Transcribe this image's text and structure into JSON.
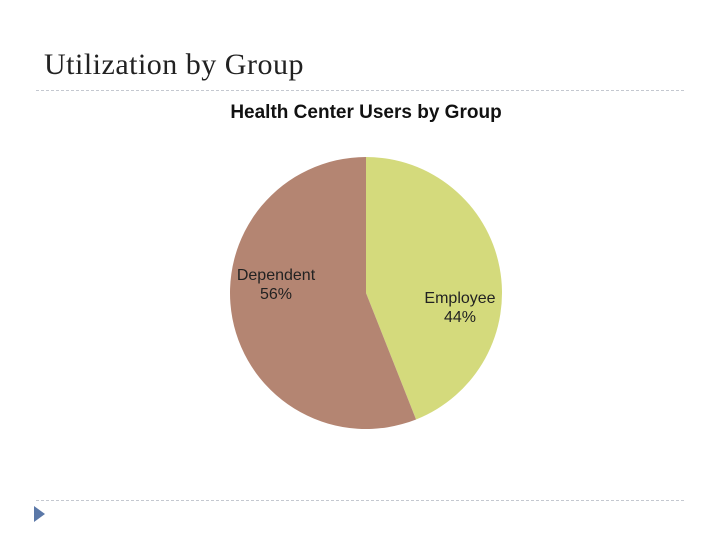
{
  "slide": {
    "title": "Utilization by Group"
  },
  "colors": {
    "employee": "#d4da7c",
    "dependent": "#b48572",
    "rule": "#c4c8d0",
    "bullet": "#5b78a8"
  },
  "chart_data": {
    "type": "pie",
    "title": "Health Center Users by Group",
    "legend": "none",
    "slices": [
      {
        "label": "Employee",
        "value": 44,
        "value_label": "44%",
        "color": "#d4da7c"
      },
      {
        "label": "Dependent",
        "value": 56,
        "value_label": "56%",
        "color": "#b48572"
      }
    ]
  }
}
